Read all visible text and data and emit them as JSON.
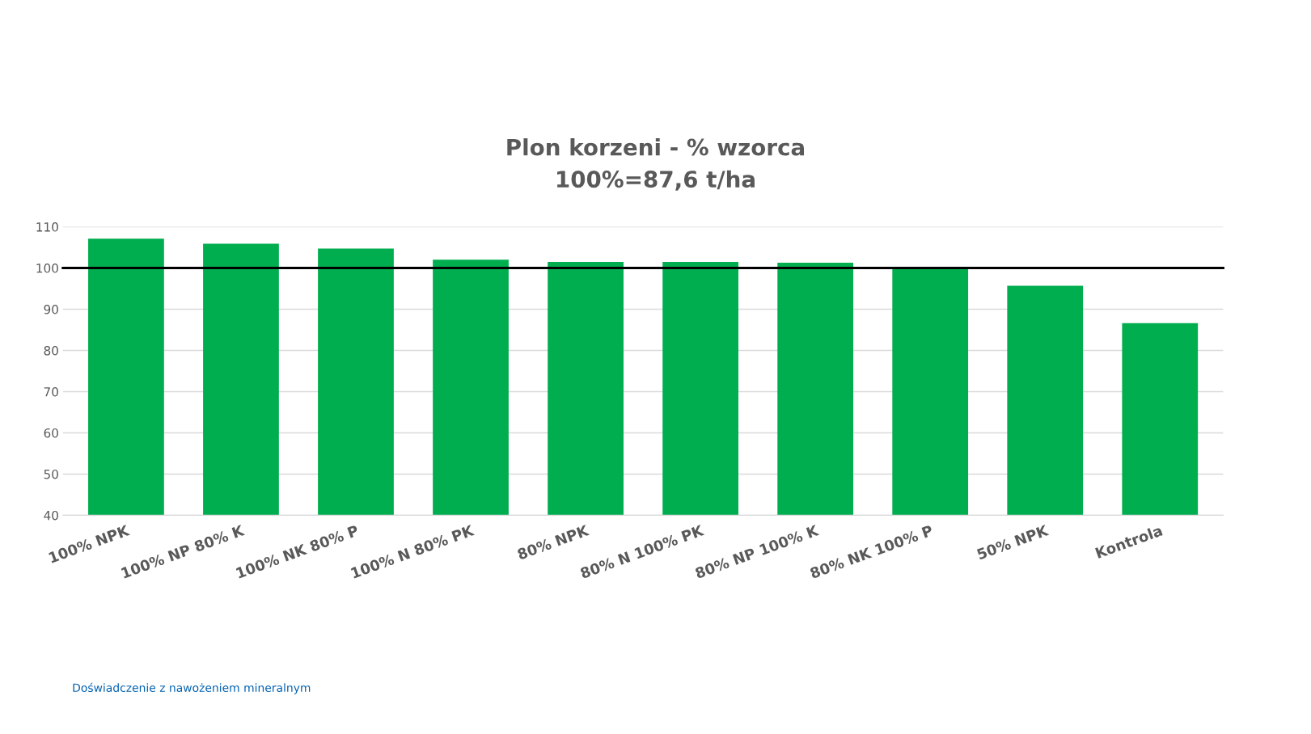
{
  "chart_data": {
    "type": "bar",
    "title": "Plon korzeni - % wzorca\n100%=87,6 t/ha",
    "categories": [
      "100% NPK",
      "100% NP 80% K",
      "100% NK 80% P",
      "100% N 80% PK",
      "80% NPK",
      "80% N 100% PK",
      "80% NP 100% K",
      "80% NK 100% P",
      "50% NPK",
      "Kontrola"
    ],
    "values": [
      107.1,
      105.9,
      104.7,
      102.0,
      101.5,
      101.5,
      101.3,
      100.2,
      95.7,
      86.6
    ],
    "color": "#00ad4f",
    "ylim": [
      40,
      110
    ],
    "yticks": [
      40,
      50,
      60,
      70,
      80,
      90,
      100,
      110
    ],
    "grid": "y",
    "ref_lines": [
      {
        "axis": "y",
        "value": 100,
        "color": "#000000"
      }
    ],
    "annotations": [
      "Doświadczenie z nawożeniem mineralnym"
    ]
  }
}
